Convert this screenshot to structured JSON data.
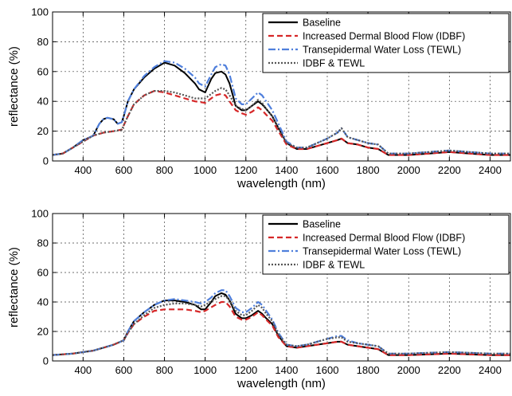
{
  "chart_data": [
    {
      "type": "line",
      "xlabel": "wavelength (nm)",
      "ylabel": "reflectance (%)",
      "xlim": [
        250,
        2500
      ],
      "ylim": [
        0,
        100
      ],
      "xticks": [
        400,
        600,
        800,
        1000,
        1200,
        1400,
        1600,
        1800,
        2000,
        2200,
        2400
      ],
      "yticks": [
        0,
        20,
        40,
        60,
        80,
        100
      ],
      "grid": true,
      "legend_position": "top-right",
      "series": [
        {
          "name": "Baseline",
          "color": "#000000",
          "style": "solid",
          "x": [
            250,
            300,
            350,
            380,
            400,
            420,
            450,
            480,
            500,
            520,
            550,
            570,
            590,
            600,
            620,
            650,
            700,
            750,
            800,
            850,
            900,
            950,
            970,
            1000,
            1030,
            1050,
            1080,
            1100,
            1120,
            1150,
            1180,
            1200,
            1230,
            1260,
            1280,
            1300,
            1330,
            1360,
            1400,
            1450,
            1500,
            1550,
            1600,
            1650,
            1670,
            1700,
            1750,
            1800,
            1850,
            1900,
            1950,
            2000,
            2100,
            2200,
            2300,
            2400,
            2500
          ],
          "y": [
            4,
            5,
            9,
            12,
            14,
            15,
            17,
            25,
            28,
            29,
            28,
            25,
            26,
            30,
            40,
            48,
            56,
            62,
            66,
            64,
            59,
            52,
            48,
            46,
            55,
            59,
            60,
            58,
            52,
            37,
            34,
            34,
            37,
            40,
            38,
            35,
            30,
            22,
            12,
            8,
            8,
            10,
            12,
            14,
            15,
            12,
            11,
            9,
            8,
            4,
            4,
            4,
            5,
            6,
            5,
            4,
            4
          ]
        },
        {
          "name": "Increased Dermal Blood Flow (IDBF)",
          "color": "#d62728",
          "style": "dashed",
          "x": [
            250,
            300,
            350,
            400,
            450,
            500,
            550,
            590,
            620,
            650,
            700,
            750,
            800,
            850,
            900,
            950,
            1000,
            1050,
            1080,
            1100,
            1120,
            1150,
            1180,
            1200,
            1230,
            1260,
            1280,
            1300,
            1330,
            1360,
            1400,
            1450,
            1500,
            1550,
            1600,
            1650,
            1670,
            1700,
            1750,
            1800,
            1850,
            1900,
            1950,
            2000,
            2100,
            2200,
            2300,
            2400,
            2500
          ],
          "y": [
            4,
            5,
            9,
            13,
            17,
            19,
            20,
            21,
            30,
            38,
            44,
            47,
            46,
            44,
            42,
            40,
            39,
            44,
            45,
            44,
            40,
            34,
            32,
            31,
            33,
            36,
            34,
            31,
            27,
            20,
            11,
            8,
            8,
            10,
            12,
            14,
            15,
            12,
            11,
            9,
            8,
            4,
            4,
            4,
            5,
            6,
            5,
            4,
            4
          ]
        },
        {
          "name": "Transepidermal Water Loss (TEWL)",
          "color": "#4f7fdc",
          "style": "dashdot",
          "x": [
            250,
            300,
            350,
            380,
            400,
            420,
            450,
            480,
            500,
            520,
            550,
            570,
            590,
            600,
            620,
            650,
            700,
            750,
            800,
            850,
            900,
            950,
            970,
            1000,
            1030,
            1050,
            1080,
            1100,
            1120,
            1150,
            1180,
            1200,
            1230,
            1260,
            1280,
            1300,
            1330,
            1360,
            1400,
            1450,
            1500,
            1550,
            1600,
            1650,
            1670,
            1700,
            1750,
            1800,
            1850,
            1900,
            1950,
            2000,
            2100,
            2200,
            2300,
            2400,
            2500
          ],
          "y": [
            4,
            5,
            9,
            12,
            14,
            15,
            17,
            25,
            28,
            29,
            28,
            25,
            26,
            30,
            40,
            48,
            57,
            63,
            67,
            66,
            62,
            56,
            52,
            50,
            58,
            63,
            65,
            64,
            58,
            42,
            38,
            38,
            42,
            46,
            44,
            40,
            34,
            25,
            13,
            9,
            9,
            12,
            15,
            19,
            22,
            16,
            14,
            12,
            11,
            5,
            5,
            5,
            6,
            7,
            6,
            5,
            5
          ]
        },
        {
          "name": "IDBF & TEWL",
          "color": "#555555",
          "style": "dotted",
          "x": [
            250,
            300,
            350,
            400,
            450,
            500,
            550,
            590,
            620,
            650,
            700,
            750,
            800,
            850,
            900,
            950,
            1000,
            1050,
            1080,
            1100,
            1120,
            1150,
            1180,
            1200,
            1230,
            1260,
            1280,
            1300,
            1330,
            1360,
            1400,
            1450,
            1500,
            1550,
            1600,
            1650,
            1670,
            1700,
            1750,
            1800,
            1850,
            1900,
            1950,
            2000,
            2100,
            2200,
            2300,
            2400,
            2500
          ],
          "y": [
            4,
            5,
            9,
            13,
            17,
            19,
            20,
            21,
            30,
            38,
            44,
            47,
            47,
            46,
            44,
            42,
            42,
            47,
            49,
            48,
            44,
            37,
            35,
            34,
            37,
            41,
            39,
            35,
            30,
            22,
            12,
            9,
            9,
            12,
            15,
            19,
            22,
            16,
            14,
            12,
            11,
            5,
            5,
            5,
            6,
            7,
            6,
            5,
            5
          ]
        }
      ]
    },
    {
      "type": "line",
      "xlabel": "wavelength (nm)",
      "ylabel": "reflectance (%)",
      "xlim": [
        250,
        2500
      ],
      "ylim": [
        0,
        100
      ],
      "xticks": [
        400,
        600,
        800,
        1000,
        1200,
        1400,
        1600,
        1800,
        2000,
        2200,
        2400
      ],
      "yticks": [
        0,
        20,
        40,
        60,
        80,
        100
      ],
      "grid": true,
      "legend_position": "top-right",
      "series": [
        {
          "name": "Baseline",
          "color": "#000000",
          "style": "solid",
          "x": [
            250,
            300,
            350,
            400,
            450,
            500,
            550,
            600,
            620,
            650,
            700,
            750,
            800,
            850,
            900,
            950,
            980,
            1000,
            1030,
            1050,
            1080,
            1100,
            1120,
            1150,
            1180,
            1200,
            1230,
            1260,
            1280,
            1300,
            1330,
            1360,
            1400,
            1450,
            1500,
            1550,
            1600,
            1650,
            1670,
            1700,
            1750,
            1800,
            1850,
            1900,
            1950,
            2000,
            2100,
            2200,
            2300,
            2400,
            2500
          ],
          "y": [
            4,
            4.5,
            5,
            6,
            7,
            9,
            11,
            14,
            20,
            27,
            33,
            38,
            41,
            41,
            40,
            38,
            35,
            35,
            40,
            44,
            46,
            45,
            41,
            32,
            29,
            29,
            31,
            34,
            32,
            29,
            25,
            17,
            10,
            9,
            10,
            11,
            12,
            13,
            13,
            11,
            10,
            9,
            8,
            4,
            4,
            4,
            4.5,
            5,
            4.5,
            4,
            4
          ]
        },
        {
          "name": "Increased Dermal Blood Flow (IDBF)",
          "color": "#d62728",
          "style": "dashed",
          "x": [
            250,
            300,
            350,
            400,
            450,
            500,
            550,
            600,
            620,
            650,
            700,
            750,
            800,
            850,
            900,
            950,
            980,
            1000,
            1050,
            1080,
            1100,
            1120,
            1150,
            1180,
            1200,
            1230,
            1260,
            1280,
            1300,
            1330,
            1360,
            1400,
            1450,
            1500,
            1550,
            1600,
            1650,
            1670,
            1700,
            1750,
            1800,
            1850,
            1900,
            1950,
            2000,
            2100,
            2200,
            2300,
            2400,
            2500
          ],
          "y": [
            4,
            4.5,
            5,
            6,
            7,
            9,
            11,
            14,
            19,
            25,
            30,
            34,
            35,
            35,
            35,
            34,
            33,
            34,
            38,
            40,
            40,
            37,
            30,
            28,
            28,
            30,
            33,
            31,
            28,
            24,
            16,
            10,
            9,
            10,
            11,
            12,
            13,
            13,
            11,
            10,
            9,
            8,
            4,
            4,
            4,
            4.5,
            5,
            4.5,
            4,
            4
          ]
        },
        {
          "name": "Transepidermal Water Loss (TEWL)",
          "color": "#4f7fdc",
          "style": "dashdot",
          "x": [
            250,
            300,
            350,
            400,
            450,
            500,
            550,
            600,
            620,
            650,
            700,
            750,
            800,
            850,
            900,
            950,
            980,
            1000,
            1030,
            1050,
            1080,
            1100,
            1120,
            1150,
            1180,
            1200,
            1230,
            1260,
            1280,
            1300,
            1330,
            1360,
            1400,
            1450,
            1500,
            1550,
            1600,
            1650,
            1670,
            1700,
            1750,
            1800,
            1850,
            1900,
            1950,
            2000,
            2100,
            2200,
            2300,
            2400,
            2500
          ],
          "y": [
            4,
            4.5,
            5,
            6,
            7,
            9,
            11,
            14,
            20,
            27,
            33,
            38,
            41,
            42,
            41,
            40,
            39,
            40,
            43,
            46,
            48,
            48,
            44,
            36,
            33,
            33,
            36,
            40,
            38,
            34,
            28,
            19,
            11,
            10,
            11,
            13,
            15,
            17,
            17,
            14,
            12,
            11,
            10,
            5,
            5,
            5,
            5.5,
            6,
            5.5,
            5,
            5
          ]
        },
        {
          "name": "IDBF & TEWL",
          "color": "#555555",
          "style": "dotted",
          "x": [
            250,
            300,
            350,
            400,
            450,
            500,
            550,
            600,
            620,
            650,
            700,
            750,
            800,
            850,
            900,
            950,
            980,
            1000,
            1050,
            1080,
            1100,
            1120,
            1150,
            1180,
            1200,
            1230,
            1260,
            1280,
            1300,
            1330,
            1360,
            1400,
            1450,
            1500,
            1550,
            1600,
            1650,
            1670,
            1700,
            1750,
            1800,
            1850,
            1900,
            1950,
            2000,
            2100,
            2200,
            2300,
            2400,
            2500
          ],
          "y": [
            4,
            4.5,
            5,
            6,
            7,
            9,
            11,
            14,
            19,
            25,
            31,
            36,
            38,
            39,
            39,
            38,
            37,
            38,
            42,
            44,
            44,
            41,
            34,
            31,
            31,
            34,
            38,
            36,
            32,
            27,
            18,
            11,
            10,
            11,
            13,
            15,
            16,
            16,
            13,
            12,
            11,
            10,
            5,
            5,
            5,
            5.5,
            6,
            5.5,
            5,
            5
          ]
        }
      ]
    }
  ]
}
